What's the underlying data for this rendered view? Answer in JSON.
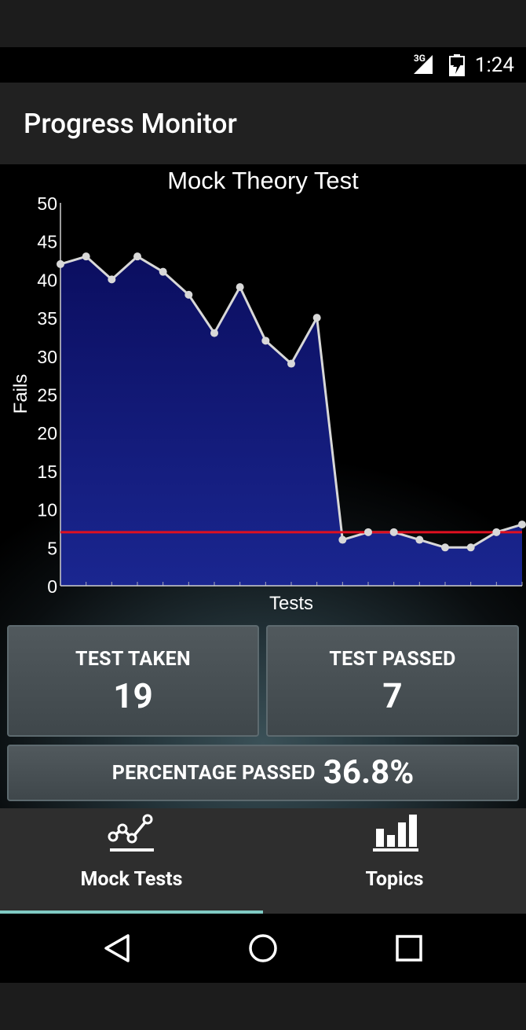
{
  "status_bar": {
    "network": "3G",
    "time": "1:24"
  },
  "app_bar": {
    "title": "Progress Monitor"
  },
  "chart_data": {
    "type": "area",
    "title": "Mock Theory Test",
    "xlabel": "Tests",
    "ylabel": "Fails",
    "ylim": [
      0,
      50
    ],
    "yticks": [
      0,
      5,
      10,
      15,
      20,
      25,
      30,
      35,
      40,
      45,
      50
    ],
    "x": [
      1,
      2,
      3,
      4,
      5,
      6,
      7,
      8,
      9,
      10,
      11,
      12,
      13,
      14,
      15,
      16,
      17,
      18,
      19
    ],
    "series": [
      {
        "values": [
          42,
          43,
          40,
          43,
          41,
          38,
          33,
          39,
          32,
          29,
          35,
          6,
          7,
          7,
          6,
          5,
          5,
          7,
          8
        ]
      }
    ],
    "threshold": 7,
    "colors": {
      "fill": "#0b0e60",
      "line": "#d8d8d8",
      "threshold": "#e01020"
    }
  },
  "stats": {
    "taken_label": "TEST TAKEN",
    "taken_value": "19",
    "passed_label": "TEST PASSED",
    "passed_value": "7",
    "percent_label": "PERCENTAGE PASSED",
    "percent_value": "36.8%"
  },
  "bottom_nav": {
    "tabs": [
      {
        "label": "Mock Tests",
        "icon": "line-chart-icon",
        "selected": true
      },
      {
        "label": "Topics",
        "icon": "bar-chart-icon",
        "selected": false
      }
    ],
    "indicator_color": "#80cbc4"
  },
  "system_nav": {
    "buttons": [
      "back-icon",
      "home-icon",
      "recents-icon"
    ]
  }
}
